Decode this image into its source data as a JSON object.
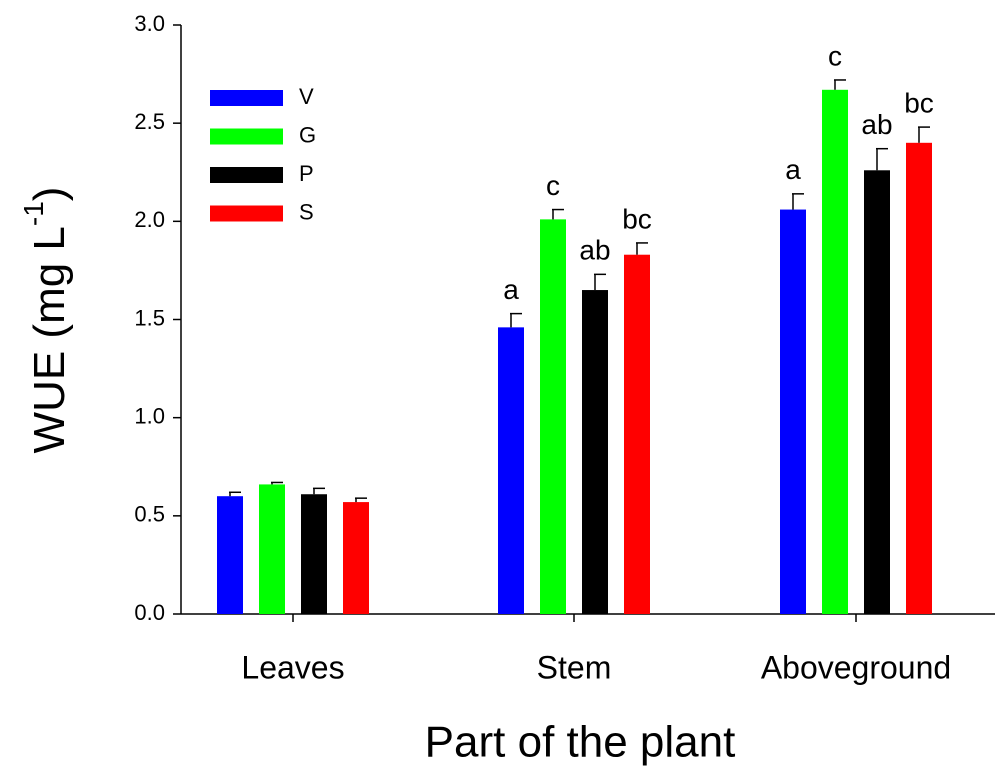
{
  "chart_data": {
    "type": "bar",
    "x_label": "Part of the plant",
    "y_label": "WUE (mg L",
    "y_label_sup": "-1",
    "y_label_end": ")",
    "categories": [
      "Leaves",
      "Stem",
      "Aboveground"
    ],
    "series": [
      {
        "name": "V",
        "color": "#0000ff",
        "values": [
          0.6,
          1.46,
          2.06
        ],
        "errors": [
          0.02,
          0.07,
          0.08
        ],
        "letters": [
          null,
          "a",
          "a"
        ]
      },
      {
        "name": "G",
        "color": "#00ff00",
        "values": [
          0.66,
          2.01,
          2.67
        ],
        "errors": [
          0.01,
          0.05,
          0.05
        ],
        "letters": [
          null,
          "c",
          "c"
        ]
      },
      {
        "name": "P",
        "color": "#000000",
        "values": [
          0.61,
          1.65,
          2.26
        ],
        "errors": [
          0.03,
          0.08,
          0.11
        ],
        "letters": [
          null,
          "ab",
          "ab"
        ]
      },
      {
        "name": "S",
        "color": "#ff0000",
        "values": [
          0.57,
          1.83,
          2.4
        ],
        "errors": [
          0.02,
          0.06,
          0.08
        ],
        "letters": [
          null,
          "bc",
          "bc"
        ]
      }
    ],
    "ylim": [
      0,
      3
    ],
    "yticks": [
      {
        "value": 0,
        "label": "0.0"
      },
      0.5,
      {
        "value": 1,
        "label": "1.0"
      },
      1.5,
      {
        "value": 2,
        "label": "2.0"
      },
      2.5,
      {
        "value": 3,
        "label": "3.0"
      }
    ],
    "legend": "top-left"
  }
}
